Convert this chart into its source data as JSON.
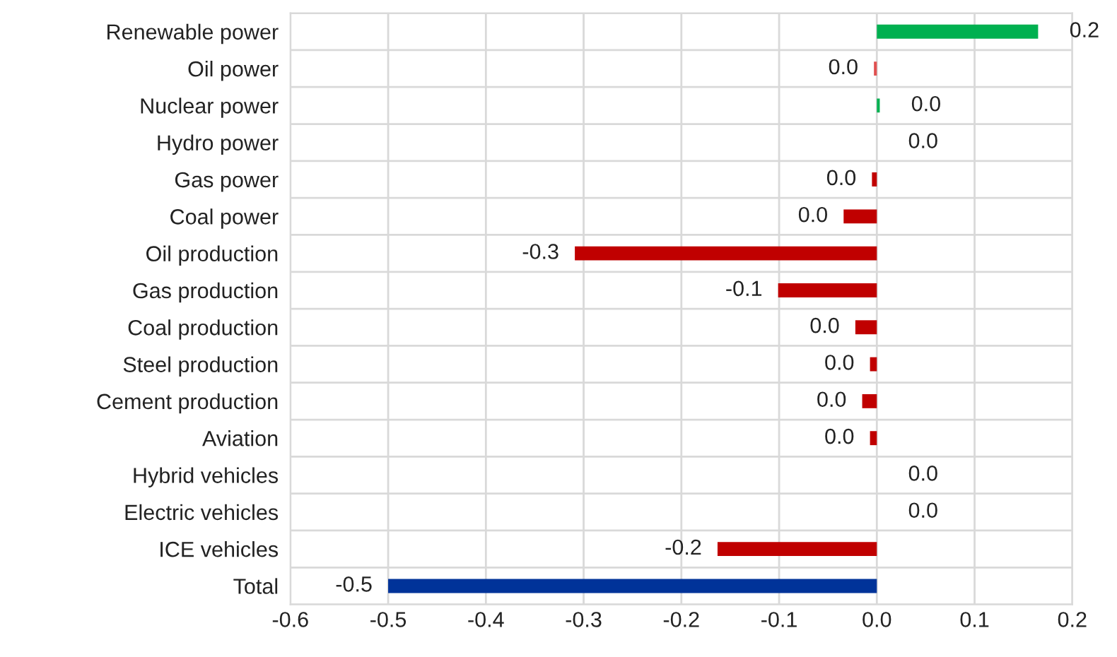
{
  "chart_data": {
    "type": "bar",
    "orientation": "horizontal",
    "categories": [
      "Renewable power",
      "Oil power",
      "Nuclear power",
      "Hydro power",
      "Gas power",
      "Coal power",
      "Oil production",
      "Gas production",
      "Coal production",
      "Steel production",
      "Cement production",
      "Aviation",
      "Hybrid vehicles",
      "Electric vehicles",
      "ICE vehicles",
      "Total"
    ],
    "values": [
      0.165,
      -0.003,
      0.003,
      0,
      -0.005,
      -0.034,
      -0.309,
      -0.101,
      -0.022,
      -0.007,
      -0.015,
      -0.007,
      0,
      0,
      -0.163,
      -0.5
    ],
    "colors": [
      "#00b050",
      "#e05050",
      "#00b050",
      "#00b050",
      "#c00000",
      "#c00000",
      "#c00000",
      "#c00000",
      "#c00000",
      "#c00000",
      "#c00000",
      "#c00000",
      "#00b050",
      "#00b050",
      "#c00000",
      "#003399"
    ],
    "value_labels": [
      "0.2",
      "0.0",
      "0.0",
      "0.0",
      "0.0",
      "0.0",
      "-0.3",
      "-0.1",
      "0.0",
      "0.0",
      "0.0",
      "0.0",
      "0.0",
      "0.0",
      "-0.2",
      "-0.5"
    ],
    "xlim": [
      -0.6,
      0.2
    ],
    "xticks": [
      {
        "value": -0.6,
        "label": "-0.6"
      },
      {
        "value": -0.5,
        "label": "-0.5"
      },
      {
        "value": -0.4,
        "label": "-0.4"
      },
      {
        "value": -0.3,
        "label": "-0.3"
      },
      {
        "value": -0.2,
        "label": "-0.2"
      },
      {
        "value": -0.1,
        "label": "-0.1"
      },
      {
        "value": 0,
        "label": "0.0"
      },
      {
        "value": 0.1,
        "label": "0.1"
      },
      {
        "value": 0.2,
        "label": "0.2"
      }
    ],
    "grid": true
  }
}
